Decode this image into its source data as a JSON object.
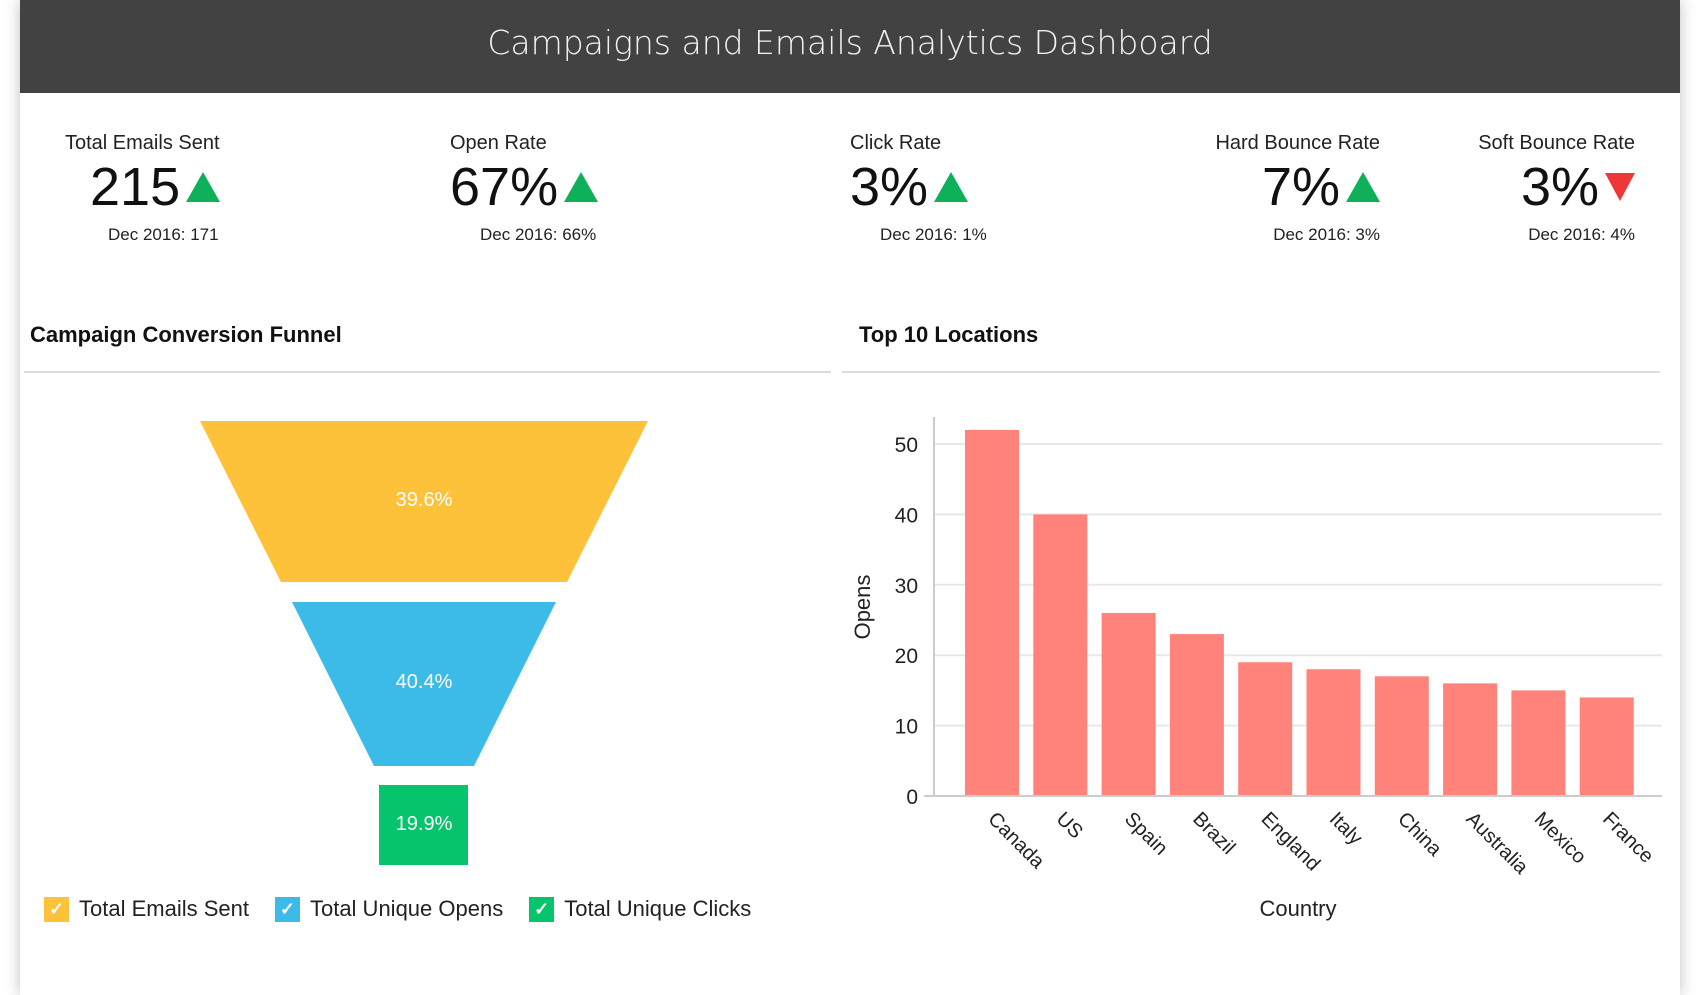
{
  "header": {
    "title": "Campaigns and Emails Analytics Dashboard"
  },
  "kpis": [
    {
      "label": "Total Emails Sent",
      "value": "215",
      "trend": "up",
      "previous": "Dec 2016: 171"
    },
    {
      "label": "Open Rate",
      "value": "67%",
      "trend": "up",
      "previous": "Dec 2016: 66%"
    },
    {
      "label": "Click Rate",
      "value": "3%",
      "trend": "up",
      "previous": "Dec 2016: 1%"
    },
    {
      "label": "Hard Bounce Rate",
      "value": "7%",
      "trend": "up",
      "previous": "Dec 2016: 3%"
    },
    {
      "label": "Soft Bounce Rate",
      "value": "3%",
      "trend": "down",
      "previous": "Dec 2016: 4%"
    }
  ],
  "colors": {
    "up": "#0fb05a",
    "down": "#ee3838",
    "bar": "#ff837b",
    "funnel": [
      "#fdc13a",
      "#3dbbe8",
      "#05c46b"
    ]
  },
  "chart_data": [
    {
      "type": "funnel",
      "title": "Campaign Conversion Funnel",
      "stages": [
        {
          "name": "Total Emails Sent",
          "label": "39.6%"
        },
        {
          "name": "Total Unique Opens",
          "label": "40.4%"
        },
        {
          "name": "Total Unique Clicks",
          "label": "19.9%"
        }
      ]
    },
    {
      "type": "bar",
      "title": "Top 10 Locations",
      "categories": [
        "Canada",
        "US",
        "Spain",
        "Brazil",
        "England",
        "Italy",
        "China",
        "Australia",
        "Mexico",
        "France"
      ],
      "values": [
        52,
        40,
        26,
        23,
        19,
        18,
        17,
        16,
        15,
        14
      ],
      "xlabel": "Country",
      "ylabel": "Opens",
      "ylim": [
        0,
        54
      ],
      "yticks": [
        0,
        10,
        20,
        30,
        40,
        50
      ],
      "grid": true
    }
  ]
}
